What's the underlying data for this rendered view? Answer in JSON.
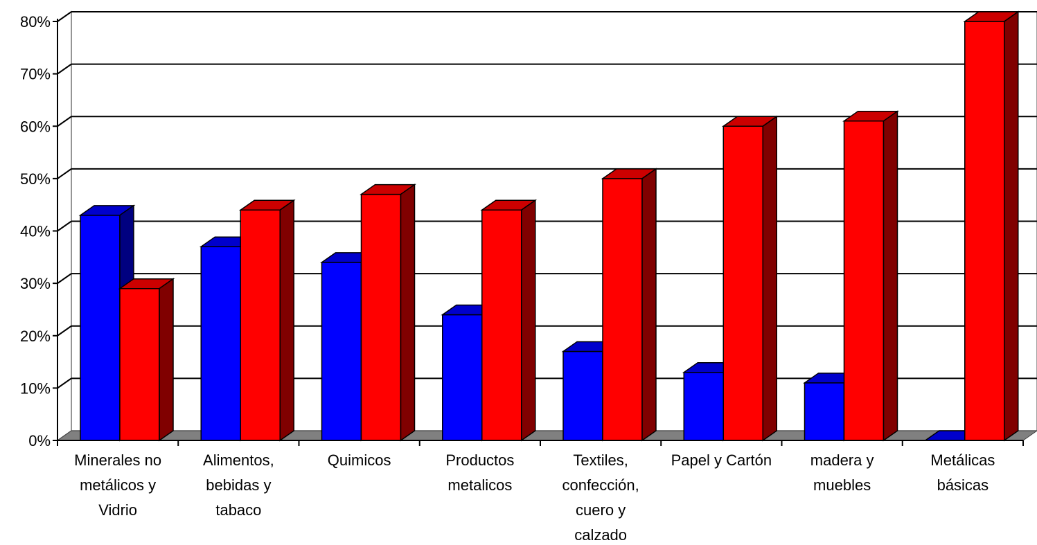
{
  "chart_data": {
    "type": "bar",
    "title": "",
    "xlabel": "",
    "ylabel": "",
    "ylim": [
      0,
      80
    ],
    "y_ticks": [
      "0%",
      "10%",
      "20%",
      "30%",
      "40%",
      "50%",
      "60%",
      "70%",
      "80%"
    ],
    "categories": [
      [
        "Minerales no",
        "metálicos y",
        "Vidrio"
      ],
      [
        "Alimentos,",
        "bebidas y",
        "tabaco"
      ],
      [
        "Quimicos"
      ],
      [
        "Productos",
        "metalicos"
      ],
      [
        "Textiles,",
        "confección,",
        "cuero y",
        "calzado"
      ],
      [
        "Papel y Cartón"
      ],
      [
        "madera y",
        "muebles"
      ],
      [
        "Metálicas",
        "básicas"
      ]
    ],
    "series": [
      {
        "values": [
          43,
          37,
          34,
          24,
          17,
          13,
          11,
          0
        ],
        "color": "#0000ff",
        "side_color": "#000080",
        "top_color": "#0000cc"
      },
      {
        "values": [
          29,
          44,
          47,
          44,
          50,
          60,
          61,
          80
        ],
        "color": "#ff0000",
        "side_color": "#800000",
        "top_color": "#cc0000"
      }
    ],
    "grid": true,
    "legend": "none",
    "style": "3d-clustered-column",
    "floor_color": "#808080",
    "wall_color": "#ffffff"
  }
}
